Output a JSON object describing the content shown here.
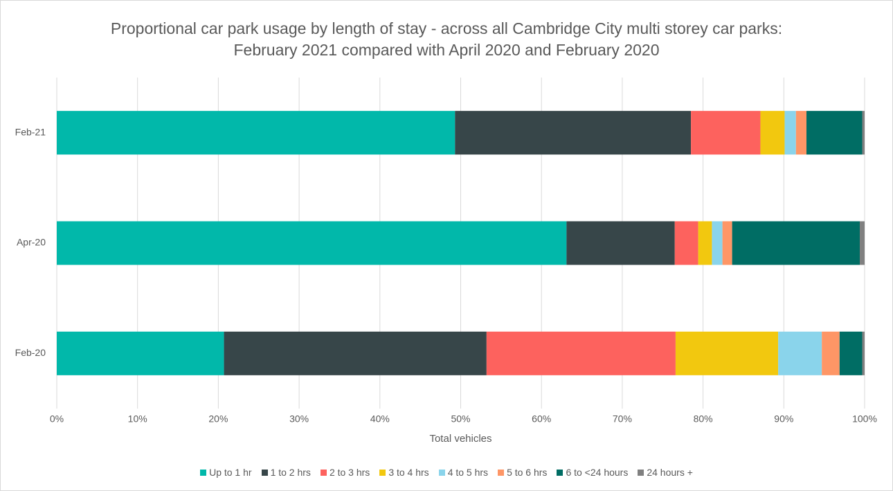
{
  "chart_data": {
    "type": "stacked-barh",
    "title": "Proportional car park usage by length of stay - across all Cambridge City multi storey car parks: February 2021 compared with April 2020 and February 2020",
    "x_label": "Total vehicles",
    "categories": [
      "Feb-21",
      "Apr-20",
      "Feb-20"
    ],
    "series": [
      {
        "name": "Up to 1 hr",
        "color": "#01b8aa",
        "values": [
          49.3,
          63.1,
          20.7
        ]
      },
      {
        "name": "1 to 2 hrs",
        "color": "#374649",
        "values": [
          29.2,
          13.4,
          32.5
        ]
      },
      {
        "name": "2 to 3 hrs",
        "color": "#fd625e",
        "values": [
          8.6,
          2.9,
          23.4
        ]
      },
      {
        "name": "3 to 4 hrs",
        "color": "#f2c80f",
        "values": [
          3.0,
          1.7,
          12.7
        ]
      },
      {
        "name": "4 to 5 hrs",
        "color": "#8ad4eb",
        "values": [
          1.4,
          1.3,
          5.4
        ]
      },
      {
        "name": "5 to 6 hrs",
        "color": "#fe9666",
        "values": [
          1.3,
          1.2,
          2.2
        ]
      },
      {
        "name": "6 to <24 hours",
        "color": "#006d64",
        "values": [
          6.9,
          15.8,
          2.8
        ]
      },
      {
        "name": "24 hours +",
        "color": "#808080",
        "values": [
          0.3,
          0.6,
          0.3
        ]
      }
    ],
    "xlim": [
      0,
      100
    ],
    "xticks": [
      {
        "value": 0,
        "label": "0%"
      },
      {
        "value": 10,
        "label": "10%"
      },
      {
        "value": 20,
        "label": "20%"
      },
      {
        "value": 30,
        "label": "30%"
      },
      {
        "value": 40,
        "label": "40%"
      },
      {
        "value": 50,
        "label": "50%"
      },
      {
        "value": 60,
        "label": "60%"
      },
      {
        "value": 70,
        "label": "70%"
      },
      {
        "value": 80,
        "label": "80%"
      },
      {
        "value": 90,
        "label": "90%"
      },
      {
        "value": 100,
        "label": "100%"
      }
    ],
    "grid": true
  }
}
